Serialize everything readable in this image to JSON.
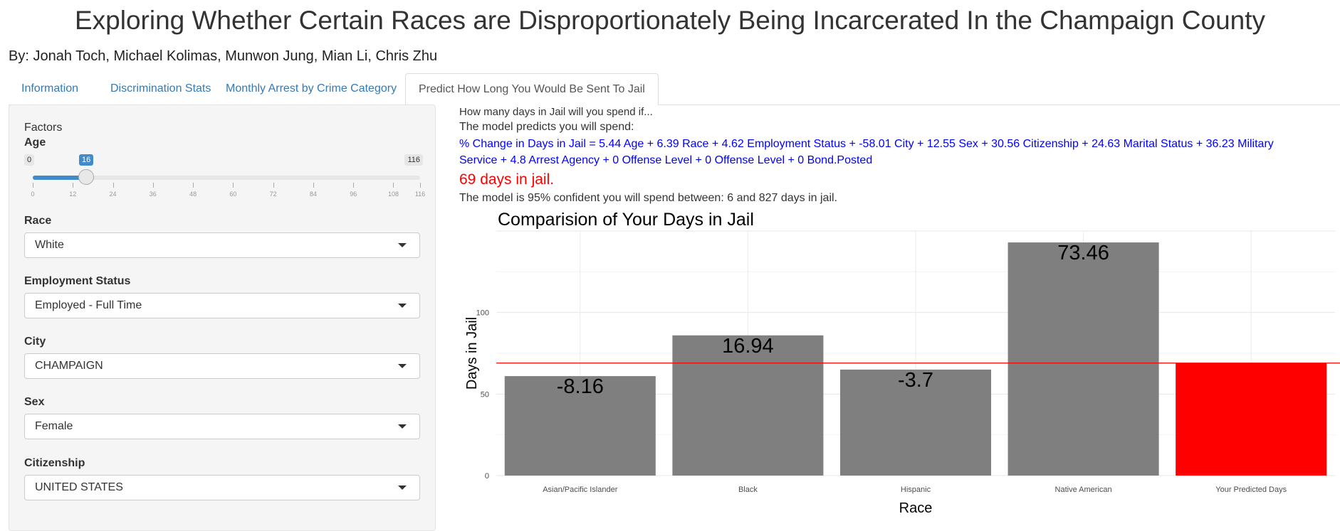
{
  "header": {
    "title": "Exploring Whether Certain Races are Disproportionately Being Incarcerated In the Champaign County",
    "byline": "By: Jonah Toch, Michael Kolimas, Munwon Jung, Mian Li, Chris Zhu"
  },
  "tabs": [
    {
      "label": "Information",
      "active": false
    },
    {
      "label": "Discrimination Stats",
      "active": false
    },
    {
      "label": "Monthly Arrest by Crime Category",
      "active": false
    },
    {
      "label": "Predict How Long You Would Be Sent To Jail",
      "active": true
    }
  ],
  "sidebar": {
    "factors_label": "Factors",
    "age": {
      "label": "Age",
      "min": 0,
      "max": 116,
      "value": 16,
      "min_label": "0",
      "max_label": "116",
      "value_label": "16",
      "ticks": [
        "0",
        "12",
        "24",
        "36",
        "48",
        "60",
        "72",
        "84",
        "96",
        "108",
        "116"
      ]
    },
    "race": {
      "label": "Race",
      "value": "White"
    },
    "employment": {
      "label": "Employment Status",
      "value": "Employed - Full Time"
    },
    "city": {
      "label": "City",
      "value": "CHAMPAIGN"
    },
    "sex": {
      "label": "Sex",
      "value": "Female"
    },
    "citizenship": {
      "label": "Citizenship",
      "value": "UNITED STATES"
    }
  },
  "main": {
    "question": "How many days in Jail will you spend if...",
    "predicts": "The model predicts you will spend:",
    "formula_line1": "% Change in Days in Jail = 5.44 Age + 6.39 Race + 4.62 Employment Status + -58.01 City + 12.55 Sex + 30.56 Citizenship + 24.63 Marital Status + 36.23 Military",
    "formula_line2": "Service + 4.8 Arrest Agency + 0 Offense Level + 0 Offense Level + 0 Bond.Posted",
    "prediction": "69 days in jail.",
    "confidence": "The model is 95% confident you will spend between: 6 and 827 days in jail."
  },
  "colors": {
    "tab_link": "#337ab7",
    "formula_text": "#0000ff",
    "prediction_text": "#ff0000",
    "bar_gray": "#7f7f7f",
    "bar_highlight": "#ff0000",
    "reference_line": "#ff0000",
    "slider_accent": "#428bca"
  },
  "chart_data": {
    "type": "bar",
    "title": "Comparision of Your Days in Jail",
    "xlabel": "Race",
    "ylabel": "Days in Jail",
    "categories": [
      "Asian/Pacific Islander",
      "Black",
      "Hispanic",
      "Native American",
      "Your Predicted Days"
    ],
    "values": [
      61,
      86,
      65,
      143,
      69
    ],
    "bar_labels": [
      "-8.16",
      "16.94",
      "-3.7",
      "73.46",
      ""
    ],
    "bar_colors": [
      "#7f7f7f",
      "#7f7f7f",
      "#7f7f7f",
      "#7f7f7f",
      "#ff0000"
    ],
    "reference_line": 69,
    "yticks": [
      "0",
      "50",
      "100"
    ],
    "ylim": [
      0,
      150
    ],
    "grid": true
  }
}
